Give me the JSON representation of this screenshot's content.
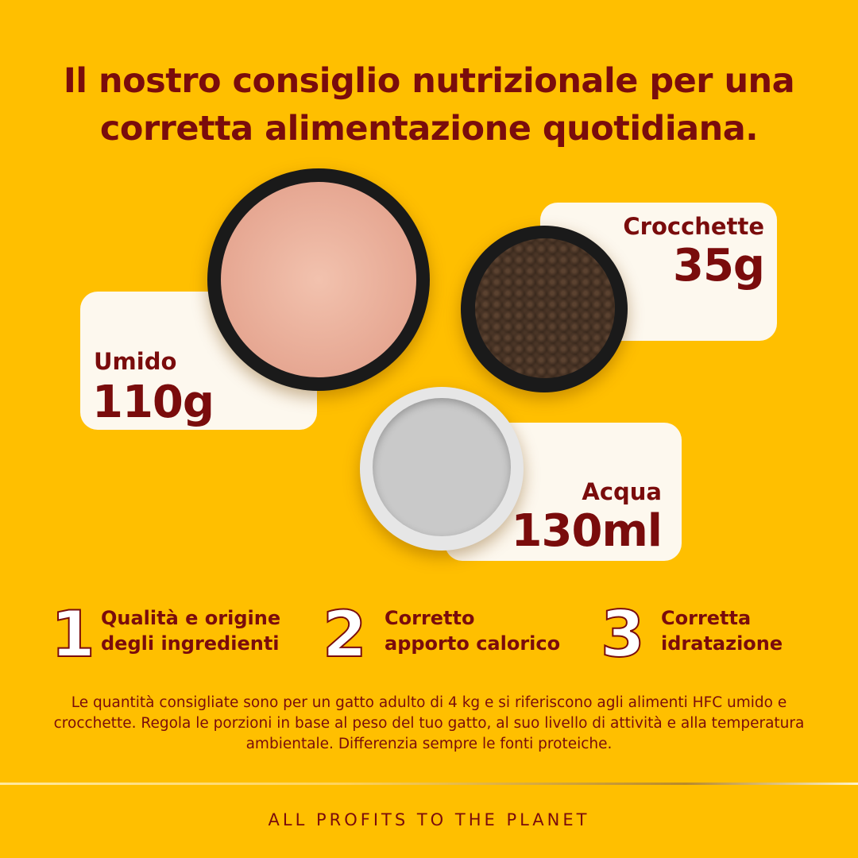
{
  "title": {
    "line1": "Il nostro consiglio nutrizionale per una",
    "line2": "corretta alimentazione quotidiana."
  },
  "portions": [
    {
      "label": "Umido",
      "value": "110g"
    },
    {
      "label": "Crocchette",
      "value": "35g"
    },
    {
      "label": "Acqua",
      "value": "130ml"
    }
  ],
  "points": [
    {
      "number": "1",
      "line1": "Qualità e origine",
      "line2": "degli ingredienti"
    },
    {
      "number": "2",
      "line1": "Corretto",
      "line2": "apporto calorico"
    },
    {
      "number": "3",
      "line1": "Corretta",
      "line2": "idratazione"
    }
  ],
  "disclaimer": "Le quantità consigliate sono per un gatto adulto di 4 kg e si riferiscono agli alimenti HFC umido e crocchette. Regola le porzioni in base al peso del tuo gatto, al suo livello di attività e alla temperatura ambientale. Differenzia sempre le fonti proteiche.",
  "footer": "ALL PROFITS TO THE PLANET",
  "colors": {
    "background": "#FFBF00",
    "text": "#7A0C0C",
    "card": "#FDF8EE"
  }
}
